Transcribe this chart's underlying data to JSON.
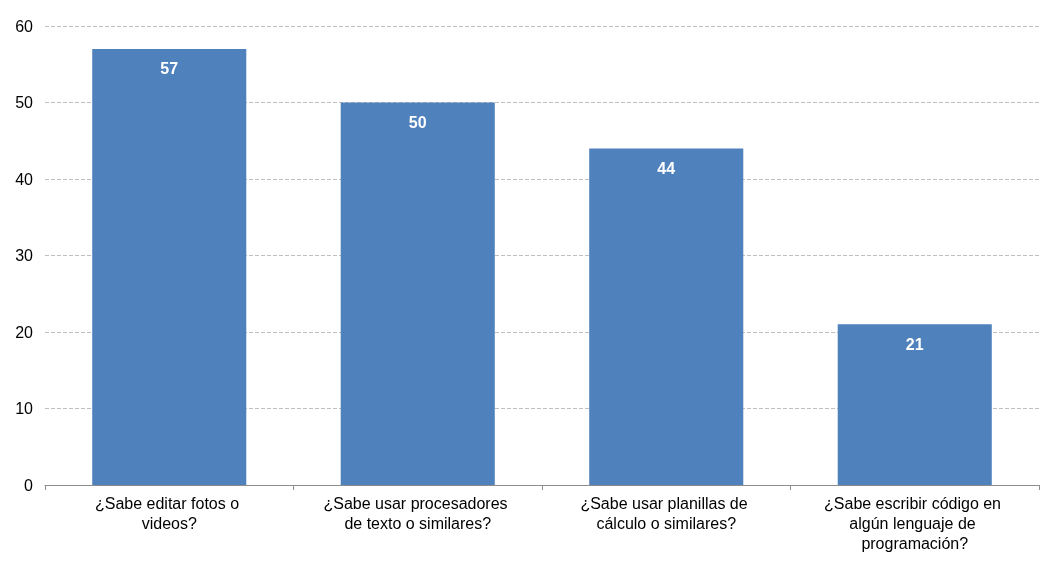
{
  "chart_data": {
    "type": "bar",
    "categories": [
      "¿Sabe editar fotos o videos?",
      "¿Sabe usar procesadores de texto o similares?",
      "¿Sabe usar planillas de cálculo o similares?",
      "¿Sabe escribir código en algún lenguaje de programación?"
    ],
    "values": [
      57,
      50,
      44,
      21
    ],
    "color": "#4f81bd",
    "ylim": [
      0,
      60
    ],
    "yticks": [
      0,
      10,
      20,
      30,
      40,
      50,
      60
    ],
    "grid": "y",
    "data_labels": true
  }
}
